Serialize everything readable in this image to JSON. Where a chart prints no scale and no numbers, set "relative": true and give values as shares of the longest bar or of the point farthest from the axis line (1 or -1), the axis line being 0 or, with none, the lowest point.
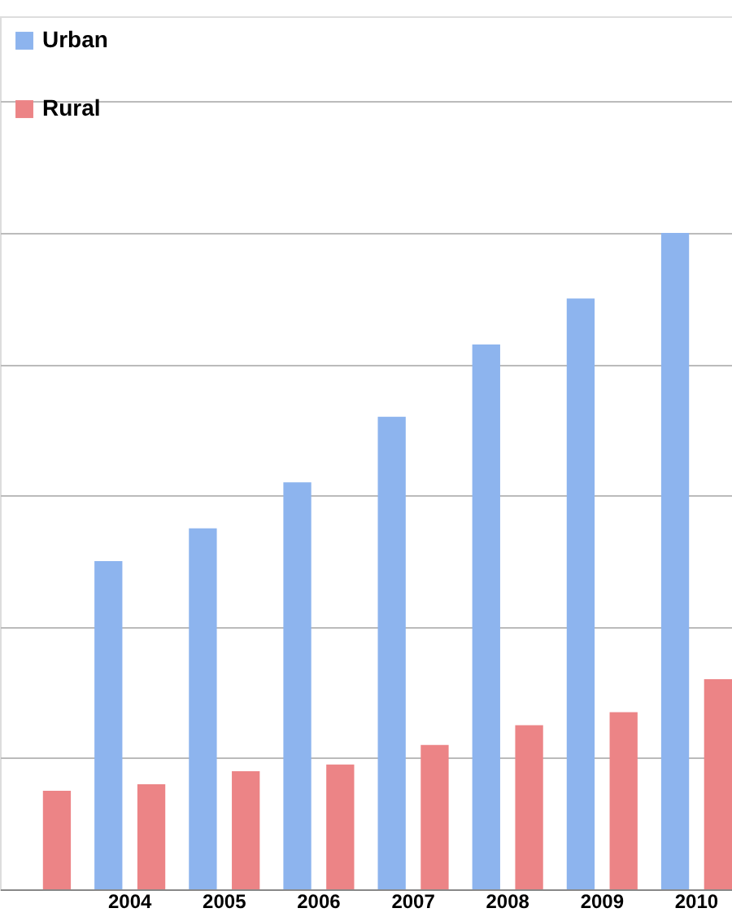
{
  "chart_data": {
    "type": "bar",
    "relative": true,
    "categories": [
      null,
      "2004",
      "2005",
      "2006",
      "2007",
      "2008",
      "2009",
      "2010"
    ],
    "series": [
      {
        "name": "Urban",
        "color": "#8db4ee",
        "values": [
          null,
          0.5,
          0.55,
          0.62,
          0.72,
          0.83,
          0.9,
          1.0
        ]
      },
      {
        "name": "Rural",
        "color": "#ec8486",
        "values": [
          0.15,
          0.16,
          0.18,
          0.19,
          0.22,
          0.25,
          0.27,
          0.32
        ]
      }
    ],
    "grid": "y",
    "legend": "top left"
  }
}
